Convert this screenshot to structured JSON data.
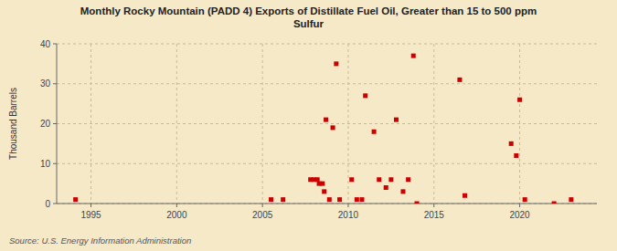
{
  "chart_data": {
    "type": "scatter",
    "title": "Monthly Rocky Mountain (PADD 4) Exports of Distillate Fuel Oil, Greater than 15 to 500 ppm\nSulfur",
    "ylabel": "Thousand Barrels",
    "source": "Source: U.S. Energy Information Administration",
    "color": "#cc0000",
    "marker": "square",
    "grid": true,
    "xlim": [
      1993.0,
      2024.5
    ],
    "ylim": [
      0,
      40
    ],
    "xticks": [
      1995,
      2000,
      2005,
      2010,
      2015,
      2020
    ],
    "yticks": [
      0,
      10,
      20,
      30,
      40
    ],
    "x": [
      1994.1,
      2005.5,
      2006.2,
      2007.8,
      2008.0,
      2008.2,
      2008.3,
      2008.5,
      2008.6,
      2008.7,
      2008.9,
      2009.1,
      2009.3,
      2009.5,
      2010.2,
      2010.5,
      2010.8,
      2011.0,
      2011.5,
      2011.8,
      2012.2,
      2012.5,
      2012.8,
      2013.2,
      2013.5,
      2013.8,
      2014.0,
      2016.5,
      2016.8,
      2019.5,
      2019.8,
      2020.0,
      2020.3,
      2022.0,
      2023.0
    ],
    "values": [
      1,
      1,
      1,
      6,
      6,
      6,
      5,
      5,
      3,
      21,
      1,
      19,
      35,
      1,
      6,
      1,
      1,
      27,
      18,
      6,
      4,
      6,
      21,
      3,
      6,
      37,
      0,
      31,
      2,
      15,
      12,
      26,
      1,
      0,
      1
    ]
  }
}
